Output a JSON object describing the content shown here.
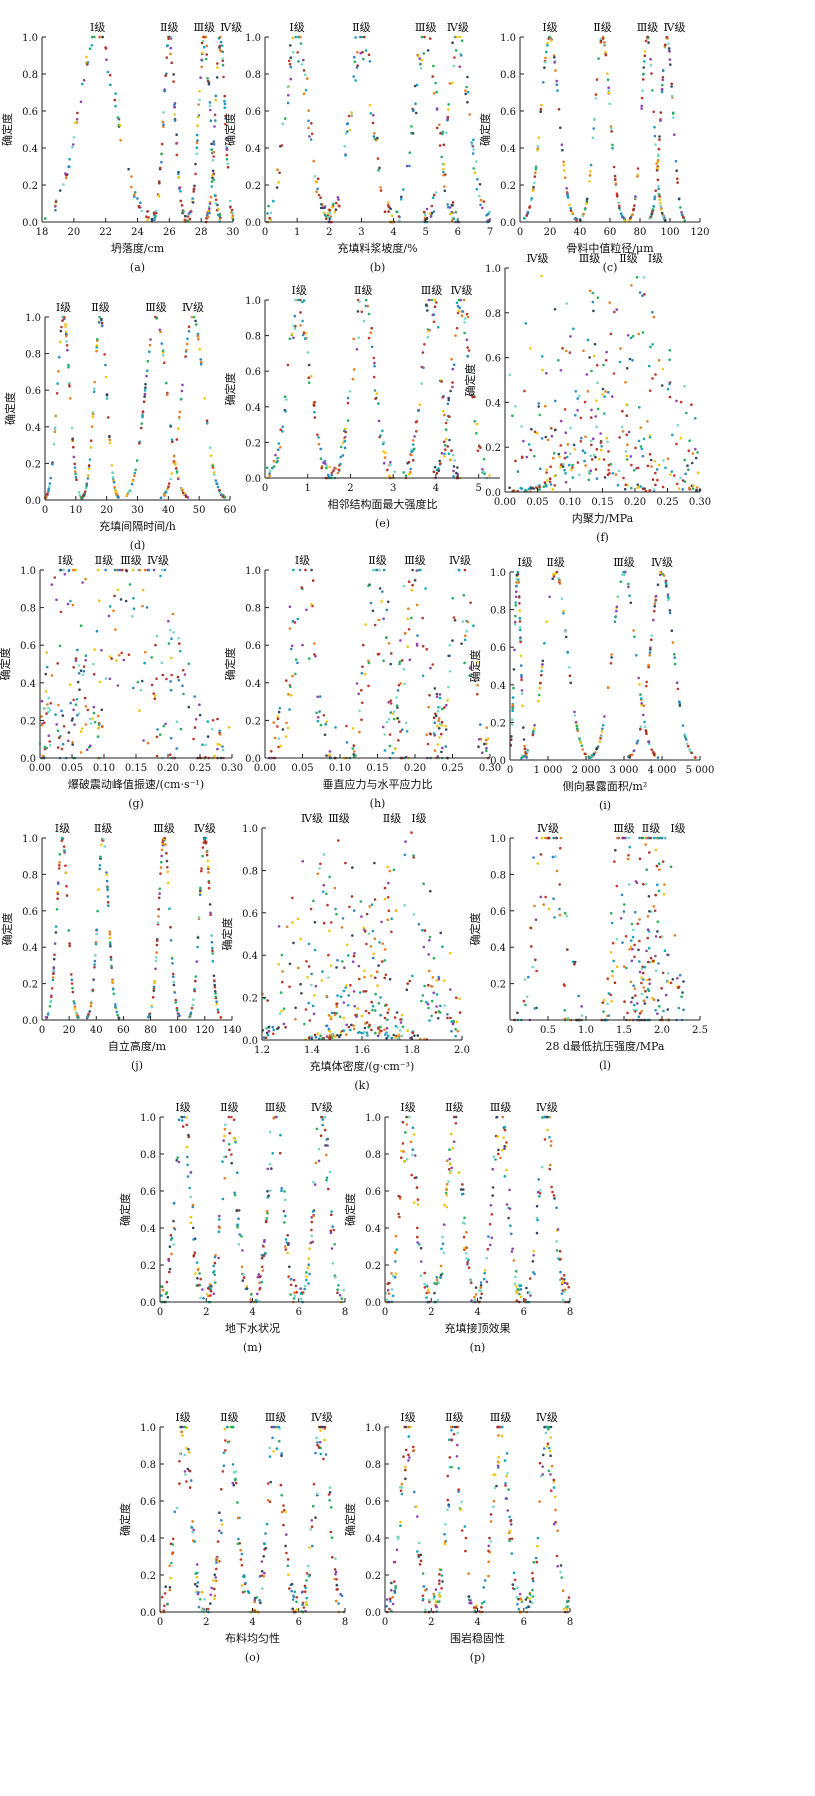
{
  "chart_data": [
    {
      "id": "a",
      "type": "scatter",
      "caption": "(a)",
      "xlabel": "坍落度/cm",
      "ylabel": "确定度",
      "xlim": [
        18,
        30
      ],
      "xticks": [
        "18",
        "20",
        "22",
        "24",
        "26",
        "28",
        "30"
      ],
      "xtick_values": [
        18,
        20,
        22,
        24,
        26,
        28,
        30
      ],
      "ylim": [
        0,
        1
      ],
      "yticks": [
        "0.0",
        "0.2",
        "0.4",
        "0.6",
        "0.8",
        "1.0"
      ],
      "noise": 0.05,
      "series": [
        {
          "name": "Ⅰ级",
          "center": 21.5,
          "sigma": 1.2
        },
        {
          "name": "Ⅱ级",
          "center": 26,
          "sigma": 0.35
        },
        {
          "name": "Ⅲ级",
          "center": 28.2,
          "sigma": 0.35
        },
        {
          "name": "Ⅳ级",
          "center": 29.2,
          "sigma": 0.3
        }
      ]
    },
    {
      "id": "b",
      "type": "scatter",
      "caption": "(b)",
      "xlabel": "充填料浆坡度/%",
      "ylabel": "确定度",
      "xlim": [
        0,
        7
      ],
      "xticks": [
        "0",
        "1",
        "2",
        "3",
        "4",
        "5",
        "6",
        "7"
      ],
      "xtick_values": [
        0,
        1,
        2,
        3,
        4,
        5,
        6,
        7
      ],
      "ylim": [
        0,
        1
      ],
      "yticks": [
        "0.0",
        "0.2",
        "0.4",
        "0.6",
        "0.8",
        "1.0"
      ],
      "noise": 0.1,
      "series": [
        {
          "name": "Ⅰ级",
          "center": 1,
          "sigma": 0.35
        },
        {
          "name": "Ⅱ级",
          "center": 3,
          "sigma": 0.35
        },
        {
          "name": "Ⅲ级",
          "center": 5,
          "sigma": 0.35
        },
        {
          "name": "Ⅳ级",
          "center": 6,
          "sigma": 0.35
        }
      ]
    },
    {
      "id": "c",
      "type": "scatter",
      "caption": "(c)",
      "xlabel": "骨料中值粒径/μm",
      "ylabel": "确定度",
      "xlim": [
        0,
        120
      ],
      "xticks": [
        "0",
        "20",
        "40",
        "60",
        "80",
        "100",
        "120"
      ],
      "xtick_values": [
        0,
        20,
        40,
        60,
        80,
        100,
        120
      ],
      "ylim": [
        0,
        1
      ],
      "yticks": [
        "0.0",
        "0.2",
        "0.4",
        "0.6",
        "0.8",
        "1.0"
      ],
      "noise": 0.01,
      "series": [
        {
          "name": "Ⅰ级",
          "center": 20,
          "sigma": 6
        },
        {
          "name": "Ⅱ级",
          "center": 55,
          "sigma": 5
        },
        {
          "name": "Ⅲ级",
          "center": 85,
          "sigma": 4
        },
        {
          "name": "Ⅳ级",
          "center": 98,
          "sigma": 4
        }
      ]
    },
    {
      "id": "d",
      "type": "scatter",
      "caption": "(d)",
      "xlabel": "充填间隔时间/h",
      "ylabel": "确定度",
      "xlim": [
        0,
        60
      ],
      "xticks": [
        "0",
        "10",
        "20",
        "30",
        "40",
        "50",
        "60"
      ],
      "xtick_values": [
        0,
        10,
        20,
        30,
        40,
        50,
        60
      ],
      "ylim": [
        0,
        1
      ],
      "yticks": [
        "0.0",
        "0.2",
        "0.4",
        "0.6",
        "0.8",
        "1.0"
      ],
      "noise": 0.01,
      "series": [
        {
          "name": "Ⅰ级",
          "center": 6,
          "sigma": 2
        },
        {
          "name": "Ⅱ级",
          "center": 18,
          "sigma": 2
        },
        {
          "name": "Ⅲ级",
          "center": 36,
          "sigma": 3.5
        },
        {
          "name": "Ⅳ级",
          "center": 48,
          "sigma": 3.5
        }
      ]
    },
    {
      "id": "e",
      "type": "scatter",
      "caption": "(e)",
      "xlabel": "相邻结构面最大强度比",
      "ylabel": "确定度",
      "xlim": [
        0,
        5.5
      ],
      "xticks": [
        "0",
        "1",
        "2",
        "3",
        "4",
        "5"
      ],
      "xtick_values": [
        0,
        1,
        2,
        3,
        4,
        5
      ],
      "ylim": [
        0,
        1
      ],
      "yticks": [
        "0.0",
        "0.2",
        "0.4",
        "0.6",
        "0.8",
        "1.0"
      ],
      "noise": 0.1,
      "series": [
        {
          "name": "Ⅰ级",
          "center": 0.8,
          "sigma": 0.25
        },
        {
          "name": "Ⅱ级",
          "center": 2.3,
          "sigma": 0.25
        },
        {
          "name": "Ⅲ级",
          "center": 3.9,
          "sigma": 0.22
        },
        {
          "name": "Ⅳ级",
          "center": 4.6,
          "sigma": 0.22
        }
      ]
    },
    {
      "id": "f",
      "type": "scatter",
      "caption": "(f)",
      "xlabel": "内聚力/MPa",
      "ylabel": "确定度",
      "xlim": [
        0,
        0.3
      ],
      "xticks": [
        "0.00",
        "0.05",
        "0.10",
        "0.15",
        "0.20",
        "0.25",
        "0.30"
      ],
      "xtick_values": [
        0,
        0.05,
        0.1,
        0.15,
        0.2,
        0.25,
        0.3
      ],
      "ylim": [
        0,
        1
      ],
      "yticks": [
        "0.0",
        "0.2",
        "0.4",
        "0.6",
        "0.8",
        "1.0"
      ],
      "noise": 0.9,
      "series": [
        {
          "name": "Ⅳ级",
          "center": 0.05,
          "sigma": 0.06
        },
        {
          "name": "Ⅲ级",
          "center": 0.13,
          "sigma": 0.06
        },
        {
          "name": "Ⅱ级",
          "center": 0.19,
          "sigma": 0.06
        },
        {
          "name": "Ⅰ级",
          "center": 0.21,
          "sigma": 0.06
        }
      ]
    },
    {
      "id": "g",
      "type": "scatter",
      "caption": "(g)",
      "xlabel": "爆破震动峰值振速/(cm·s⁻¹)",
      "ylabel": "确定度",
      "xlim": [
        0,
        0.3
      ],
      "xticks": [
        "0.00",
        "0.05",
        "0.10",
        "0.15",
        "0.20",
        "0.25",
        "0.30"
      ],
      "xtick_values": [
        0,
        0.05,
        0.1,
        0.15,
        0.2,
        0.25,
        0.3
      ],
      "ylim": [
        0,
        1
      ],
      "yticks": [
        "0.0",
        "0.2",
        "0.4",
        "0.6",
        "0.8",
        "1.0"
      ],
      "noise": 0.35,
      "series": [
        {
          "name": "Ⅰ级",
          "center": 0.04,
          "sigma": 0.02
        },
        {
          "name": "Ⅱ级",
          "center": 0.1,
          "sigma": 0.04
        },
        {
          "name": "Ⅲ级",
          "center": 0.14,
          "sigma": 0.05
        },
        {
          "name": "Ⅳ级",
          "center": 0.16,
          "sigma": 0.05
        }
      ]
    },
    {
      "id": "h",
      "type": "scatter",
      "caption": "(h)",
      "xlabel": "垂直应力与水平应力比",
      "ylabel": "确定度",
      "xlim": [
        0,
        0.3
      ],
      "xticks": [
        "0.00",
        "0.05",
        "0.10",
        "0.15",
        "0.20",
        "0.25",
        "0.30"
      ],
      "xtick_values": [
        0,
        0.05,
        0.1,
        0.15,
        0.2,
        0.25,
        0.3
      ],
      "ylim": [
        0,
        1
      ],
      "yticks": [
        "0.0",
        "0.2",
        "0.4",
        "0.6",
        "0.8",
        "1.0"
      ],
      "noise": 0.3,
      "series": [
        {
          "name": "Ⅰ级",
          "center": 0.05,
          "sigma": 0.015
        },
        {
          "name": "Ⅱ级",
          "center": 0.15,
          "sigma": 0.015
        },
        {
          "name": "Ⅲ级",
          "center": 0.2,
          "sigma": 0.015
        },
        {
          "name": "Ⅳ级",
          "center": 0.26,
          "sigma": 0.015
        }
      ]
    },
    {
      "id": "i",
      "type": "scatter",
      "caption": "(i)",
      "xlabel": "侧向暴露面积/m²",
      "ylabel": "确定度",
      "xlim": [
        0,
        5000
      ],
      "xticks": [
        "0",
        "1 000",
        "2 000",
        "3 000",
        "4 000",
        "5 000"
      ],
      "xtick_values": [
        0,
        1000,
        2000,
        3000,
        4000,
        5000
      ],
      "ylim": [
        0,
        1
      ],
      "yticks": [
        "0.0",
        "0.2",
        "0.4",
        "0.6",
        "0.8",
        "1.0"
      ],
      "noise": 0.01,
      "series": [
        {
          "name": "Ⅰ级",
          "center": 200,
          "sigma": 80
        },
        {
          "name": "Ⅱ级",
          "center": 1200,
          "sigma": 300
        },
        {
          "name": "Ⅲ级",
          "center": 3000,
          "sigma": 300
        },
        {
          "name": "Ⅳ级",
          "center": 4000,
          "sigma": 300
        }
      ]
    },
    {
      "id": "j",
      "type": "scatter",
      "caption": "(j)",
      "xlabel": "自立高度/m",
      "ylabel": "确定度",
      "xlim": [
        0,
        140
      ],
      "xticks": [
        "0",
        "20",
        "40",
        "60",
        "80",
        "100",
        "120",
        "140"
      ],
      "xtick_values": [
        0,
        20,
        40,
        60,
        80,
        100,
        120,
        140
      ],
      "ylim": [
        0,
        1
      ],
      "yticks": [
        "0.0",
        "0.2",
        "0.4",
        "0.6",
        "0.8",
        "1.0"
      ],
      "noise": 0.01,
      "series": [
        {
          "name": "Ⅰ级",
          "center": 15,
          "sigma": 4
        },
        {
          "name": "Ⅱ级",
          "center": 45,
          "sigma": 4
        },
        {
          "name": "Ⅲ级",
          "center": 90,
          "sigma": 4
        },
        {
          "name": "Ⅳ级",
          "center": 120,
          "sigma": 4
        }
      ]
    },
    {
      "id": "k",
      "type": "scatter",
      "caption": "(k)",
      "xlabel": "充填体密度/(g·cm⁻³)",
      "ylabel": "确定度",
      "xlim": [
        1.2,
        2.0
      ],
      "xticks": [
        "1.2",
        "1.4",
        "1.6",
        "1.8",
        "2.0"
      ],
      "xtick_values": [
        1.2,
        1.4,
        1.6,
        1.8,
        2.0
      ],
      "ylim": [
        0,
        1
      ],
      "yticks": [
        "0.0",
        "0.2",
        "0.4",
        "0.6",
        "0.8",
        "1.0"
      ],
      "noise": 0.9,
      "series": [
        {
          "name": "Ⅳ级",
          "center": 1.4,
          "sigma": 0.12
        },
        {
          "name": "Ⅲ级",
          "center": 1.5,
          "sigma": 0.12
        },
        {
          "name": "Ⅱ级",
          "center": 1.72,
          "sigma": 0.12
        },
        {
          "name": "Ⅰ级",
          "center": 1.8,
          "sigma": 0.12
        }
      ]
    },
    {
      "id": "l",
      "type": "scatter",
      "caption": "(l)",
      "xlabel": "28 d最低抗压强度/MPa",
      "ylabel": "确定度",
      "xlim": [
        0,
        2.5
      ],
      "xticks": [
        "0",
        "0.5",
        "1.0",
        "1.5",
        "2.0",
        "2.5"
      ],
      "xtick_values": [
        0,
        0.5,
        1,
        1.5,
        2,
        2.5
      ],
      "ylim": [
        0,
        1
      ],
      "yticks": [
        "0.2",
        "0.4",
        "0.6",
        "0.8",
        "1.0"
      ],
      "noise": 0.5,
      "series": [
        {
          "name": "Ⅳ级",
          "center": 0.5,
          "sigma": 0.15
        },
        {
          "name": "Ⅲ级",
          "center": 1.5,
          "sigma": 0.1
        },
        {
          "name": "Ⅱ级",
          "center": 1.8,
          "sigma": 0.1
        },
        {
          "name": "Ⅰ级",
          "center": 2.0,
          "sigma": 0.1
        }
      ]
    },
    {
      "id": "m",
      "type": "scatter",
      "caption": "(m)",
      "xlabel": "地下水状况",
      "ylabel": "确定度",
      "xlim": [
        0,
        8
      ],
      "xticks": [
        "0",
        "2",
        "4",
        "6",
        "8"
      ],
      "xtick_values": [
        0,
        2,
        4,
        6,
        8
      ],
      "ylim": [
        0,
        1
      ],
      "yticks": [
        "0.0",
        "0.2",
        "0.4",
        "0.6",
        "0.8",
        "1.0"
      ],
      "noise": 0.15,
      "series": [
        {
          "name": "Ⅰ级",
          "center": 1,
          "sigma": 0.32
        },
        {
          "name": "Ⅱ级",
          "center": 3,
          "sigma": 0.32
        },
        {
          "name": "Ⅲ级",
          "center": 5,
          "sigma": 0.32
        },
        {
          "name": "Ⅳ级",
          "center": 7,
          "sigma": 0.32
        }
      ]
    },
    {
      "id": "n",
      "type": "scatter",
      "caption": "(n)",
      "xlabel": "充填接顶效果",
      "ylabel": "确定度",
      "xlim": [
        0,
        8
      ],
      "xticks": [
        "0",
        "2",
        "4",
        "6",
        "8"
      ],
      "xtick_values": [
        0,
        2,
        4,
        6,
        8
      ],
      "ylim": [
        0,
        1
      ],
      "yticks": [
        "0.0",
        "0.2",
        "0.4",
        "0.6",
        "0.8",
        "1.0"
      ],
      "noise": 0.15,
      "series": [
        {
          "name": "Ⅰ级",
          "center": 1,
          "sigma": 0.32
        },
        {
          "name": "Ⅱ级",
          "center": 3,
          "sigma": 0.32
        },
        {
          "name": "Ⅲ级",
          "center": 5,
          "sigma": 0.32
        },
        {
          "name": "Ⅳ级",
          "center": 7,
          "sigma": 0.32
        }
      ]
    },
    {
      "id": "o",
      "type": "scatter",
      "caption": "(o)",
      "xlabel": "布料均匀性",
      "ylabel": "确定度",
      "xlim": [
        0,
        8
      ],
      "xticks": [
        "0",
        "2",
        "4",
        "6",
        "8"
      ],
      "xtick_values": [
        0,
        2,
        4,
        6,
        8
      ],
      "ylim": [
        0,
        1
      ],
      "yticks": [
        "0.0",
        "0.2",
        "0.4",
        "0.6",
        "0.8",
        "1.0"
      ],
      "noise": 0.15,
      "series": [
        {
          "name": "Ⅰ级",
          "center": 1,
          "sigma": 0.32
        },
        {
          "name": "Ⅱ级",
          "center": 3,
          "sigma": 0.32
        },
        {
          "name": "Ⅲ级",
          "center": 5,
          "sigma": 0.32
        },
        {
          "name": "Ⅳ级",
          "center": 7,
          "sigma": 0.32
        }
      ]
    },
    {
      "id": "p",
      "type": "scatter",
      "caption": "(p)",
      "xlabel": "围岩稳固性",
      "ylabel": "确定度",
      "xlim": [
        0,
        8
      ],
      "xticks": [
        "0",
        "2",
        "4",
        "6",
        "8"
      ],
      "xtick_values": [
        0,
        2,
        4,
        6,
        8
      ],
      "ylim": [
        0,
        1
      ],
      "yticks": [
        "0.0",
        "0.2",
        "0.4",
        "0.6",
        "0.8",
        "1.0"
      ],
      "noise": 0.15,
      "series": [
        {
          "name": "Ⅰ级",
          "center": 1,
          "sigma": 0.32
        },
        {
          "name": "Ⅱ级",
          "center": 3,
          "sigma": 0.32
        },
        {
          "name": "Ⅲ级",
          "center": 5,
          "sigma": 0.32
        },
        {
          "name": "Ⅳ级",
          "center": 7,
          "sigma": 0.32
        }
      ]
    }
  ],
  "palette": [
    "#c0392b",
    "#2e86c1",
    "#f1c40f",
    "#27ae60",
    "#8e44ad",
    "#e67e22",
    "#17a2b8",
    "#34495e",
    "#a93226",
    "#76d7c4"
  ]
}
